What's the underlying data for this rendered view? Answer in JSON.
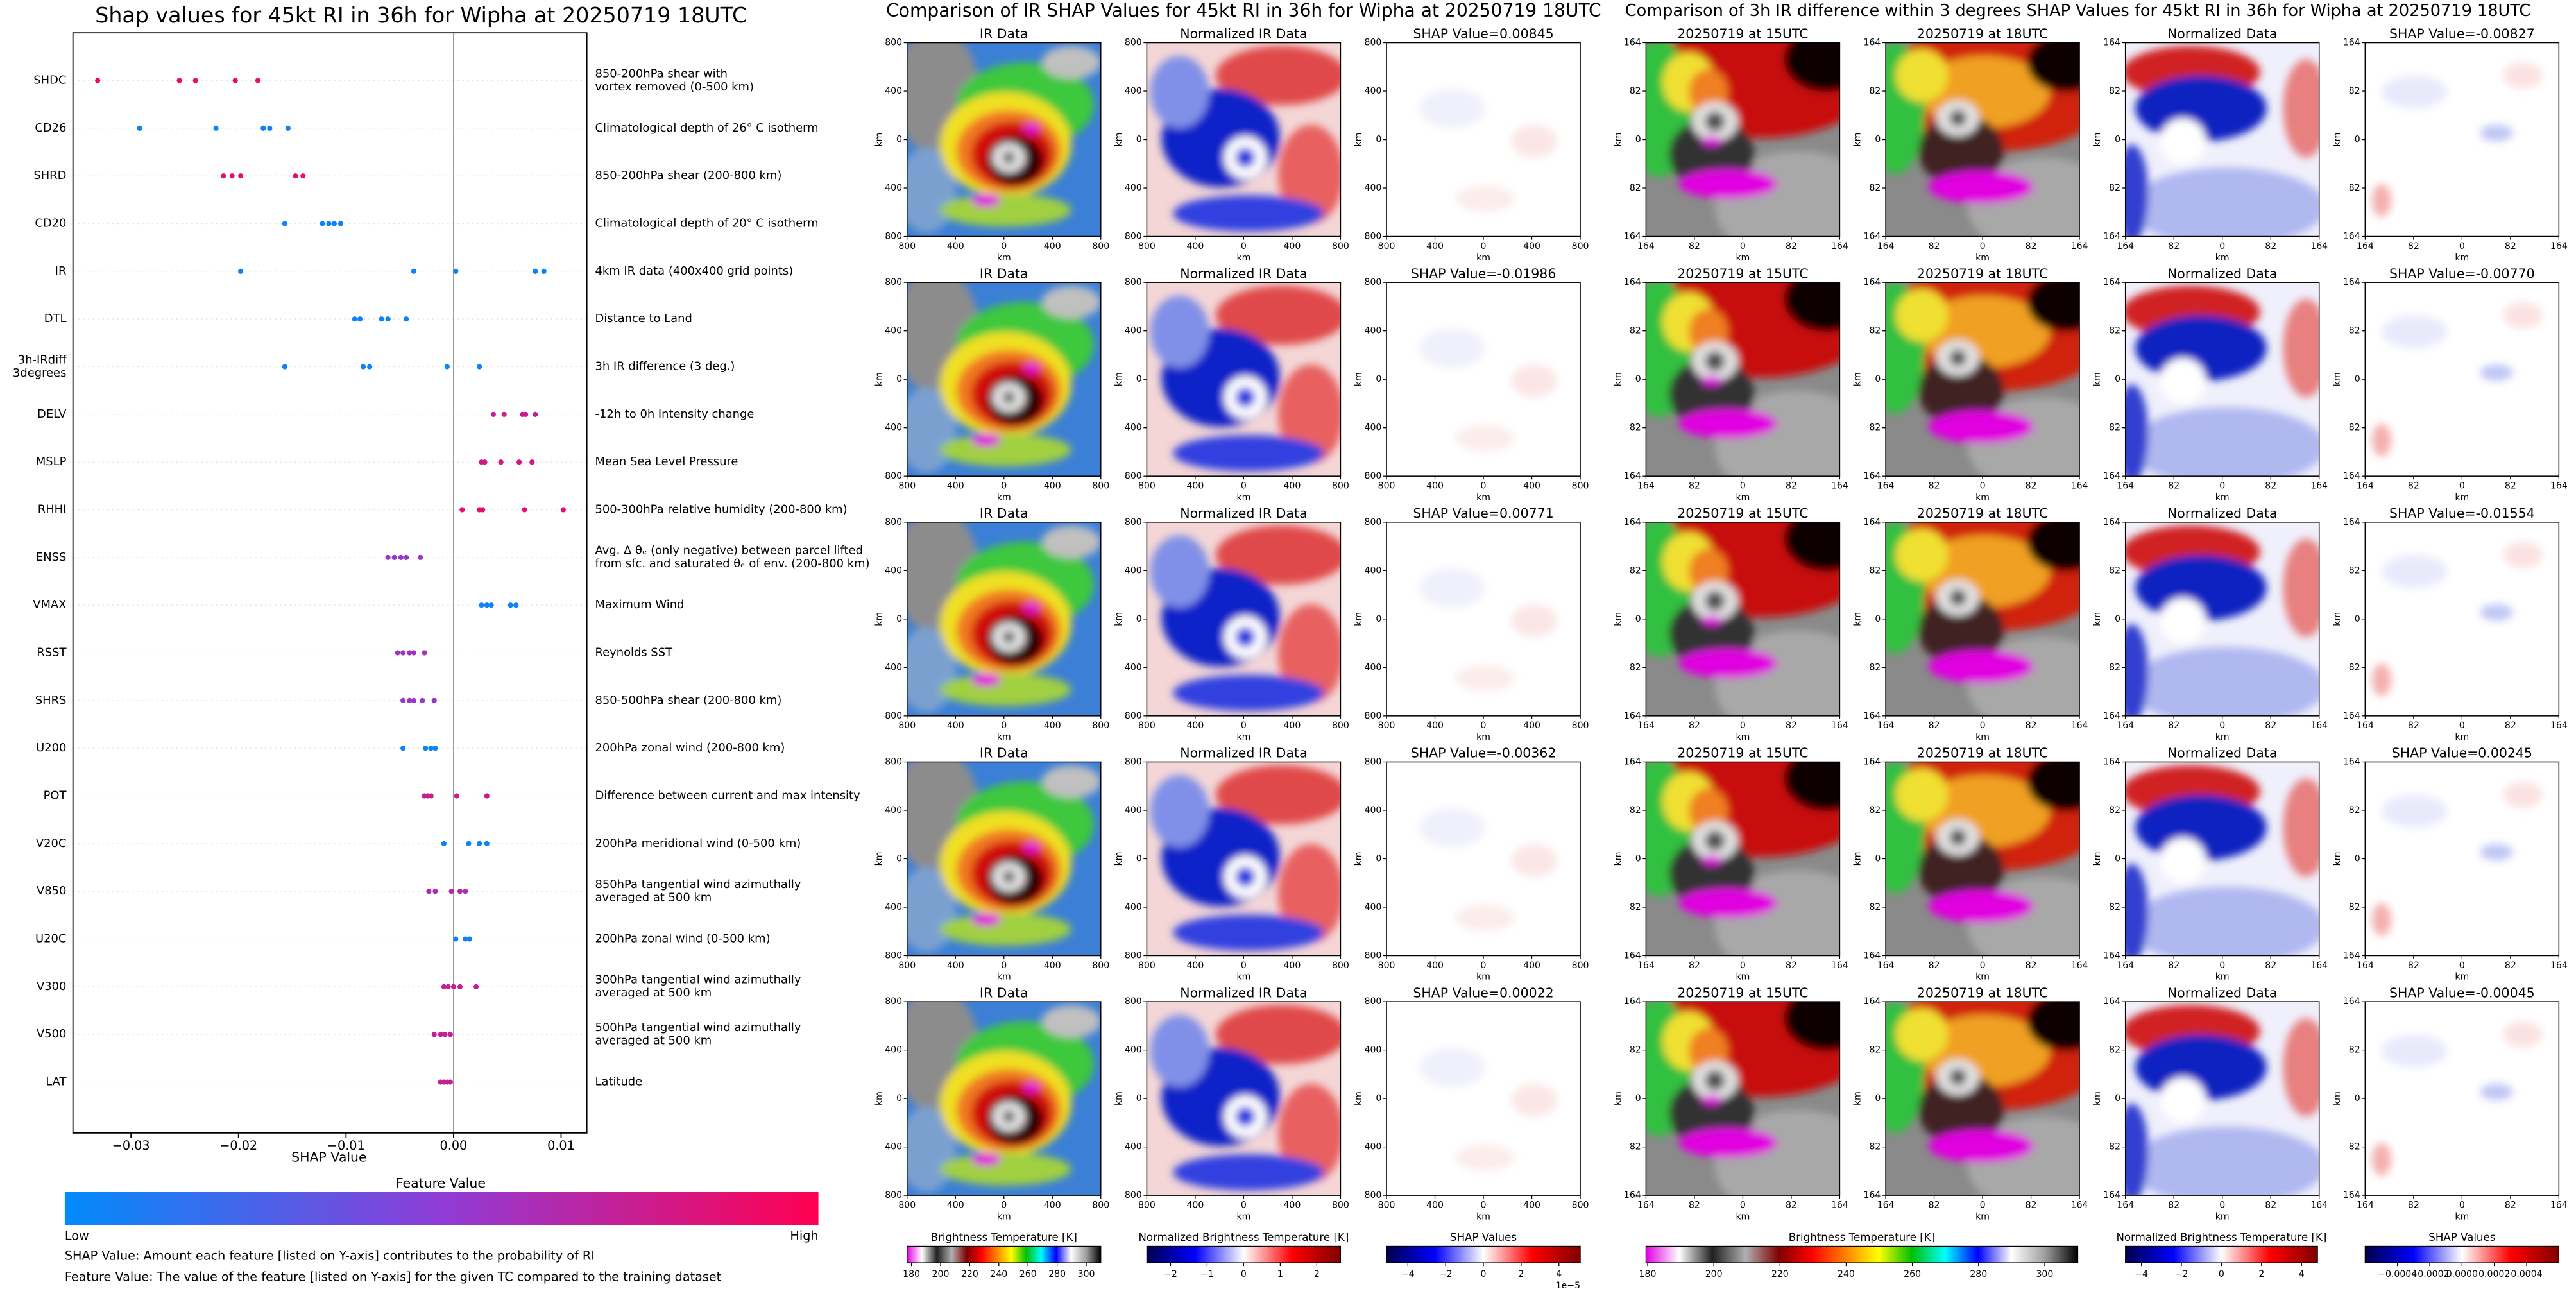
{
  "chart_data": [
    {
      "type": "scatter",
      "title": "Shap values for 45kt RI in 36h for Wipha at 20250719 18UTC",
      "xlabel": "SHAP Value",
      "xlim": [
        -0.0354,
        0.0124
      ],
      "xticks": [
        {
          "value": -0.03,
          "label": "−0.03"
        },
        {
          "value": -0.02,
          "label": "−0.02"
        },
        {
          "value": -0.01,
          "label": "−0.01"
        },
        {
          "value": 0,
          "label": "0.00"
        },
        0.01
      ],
      "categories": [
        [
          "SHDC"
        ],
        [
          "CD26"
        ],
        [
          "SHRD"
        ],
        [
          "CD20"
        ],
        [
          "IR"
        ],
        [
          "DTL"
        ],
        [
          "3h-IRdiff",
          "3degrees"
        ],
        [
          "DELV"
        ],
        [
          "MSLP"
        ],
        [
          "RHHI"
        ],
        [
          "ENSS"
        ],
        [
          "VMAX"
        ],
        [
          "RSST"
        ],
        [
          "SHRS"
        ],
        [
          "U200"
        ],
        [
          "POT"
        ],
        [
          "V20C"
        ],
        [
          "V850"
        ],
        [
          "U20C"
        ],
        [
          "V300"
        ],
        [
          "V500"
        ],
        [
          "LAT"
        ]
      ],
      "descriptions": [
        [
          "850-200hPa shear with",
          "vortex removed (0-500 km)"
        ],
        [
          "Climatological depth of 26° C isotherm"
        ],
        [
          "850-200hPa shear (200-800 km)"
        ],
        [
          "Climatological depth of 20° C isotherm"
        ],
        [
          "4km IR data (400x400 grid points)"
        ],
        [
          "Distance to Land"
        ],
        [
          "3h IR difference (3 deg.)"
        ],
        [
          "-12h to 0h Intensity change"
        ],
        [
          "Mean Sea Level Pressure"
        ],
        [
          "500-300hPa relative humidity (200-800 km)"
        ],
        [
          "Avg. Δ θₑ (only negative) between parcel lifted",
          "from sfc. and saturated θₑ of env. (200-800 km)"
        ],
        [
          "Maximum Wind"
        ],
        [
          "Reynolds SST"
        ],
        [
          "850-500hPa shear (200-800 km)"
        ],
        [
          "200hPa zonal wind (200-800 km)"
        ],
        [
          "Difference between current and max intensity"
        ],
        [
          "200hPa meridional wind (0-500 km)"
        ],
        [
          "850hPa tangential wind azimuthally",
          "averaged at 500 km"
        ],
        [
          "200hPa zonal wind (0-500 km)"
        ],
        [
          "300hPa tangential wind azimuthally",
          "averaged at 500 km"
        ],
        [
          "500hPa tangential wind azimuthally",
          "averaged at 500 km"
        ],
        [
          "Latitude"
        ]
      ],
      "values": [
        [
          -0.0331,
          -0.0255,
          -0.024,
          -0.0203,
          -0.0182
        ],
        [
          -0.0292,
          -0.0221,
          -0.0177,
          -0.0171,
          -0.0154
        ],
        [
          -0.0214,
          -0.0206,
          -0.0198,
          -0.0147,
          -0.014
        ],
        [
          -0.0157,
          -0.0122,
          -0.0116,
          -0.0111,
          -0.0105
        ],
        [
          -0.0198,
          -0.0037,
          0.0002,
          0.0076,
          0.0084
        ],
        [
          -0.0092,
          -0.0087,
          -0.0067,
          -0.0061,
          -0.0044
        ],
        [
          -0.0157,
          -0.0084,
          -0.0078,
          -0.0006,
          0.0024
        ],
        [
          0.0037,
          0.0047,
          0.0064,
          0.0067,
          0.0076
        ],
        [
          0.0026,
          0.0029,
          0.0044,
          0.0061,
          0.0073
        ],
        [
          0.0008,
          0.0024,
          0.0027,
          0.0066,
          0.0102
        ],
        [
          -0.0061,
          -0.0055,
          -0.0049,
          -0.0044,
          -0.0031
        ],
        [
          0.0026,
          0.0031,
          0.0035,
          0.0053,
          0.0058
        ],
        [
          -0.0052,
          -0.0047,
          -0.0041,
          -0.0037,
          -0.0027
        ],
        [
          -0.0047,
          -0.0041,
          -0.0037,
          -0.0029,
          -0.0018
        ],
        [
          -0.0047,
          -0.0026,
          -0.0021,
          -0.0017
        ],
        [
          -0.0027,
          -0.0024,
          -0.0021,
          0.0003,
          0.0031
        ],
        [
          -0.0009,
          0.0014,
          0.0024,
          0.0031
        ],
        [
          -0.0023,
          -0.0017,
          -0.0002,
          0.0006,
          0.0011
        ],
        [
          0.0002,
          0.0011,
          0.0015
        ],
        [
          -0.0009,
          -0.0005,
          0.0,
          0.0006,
          0.0021
        ],
        [
          -0.0018,
          -0.0012,
          -0.0008,
          -0.0003
        ],
        [
          -0.0012,
          -0.0009,
          -0.0006,
          -0.0003
        ]
      ],
      "feature_values": [
        [
          1,
          0.95,
          0.9,
          0.95,
          0.9
        ],
        [
          0.05,
          0.05,
          0.05,
          0.05,
          0.05
        ],
        [
          0.85,
          0.85,
          0.85,
          0.9,
          0.9
        ],
        [
          0.05,
          0.05,
          0.05,
          0.05,
          0.05
        ],
        [
          0.05,
          0.05,
          0.05,
          0.05,
          0.05
        ],
        [
          0.05,
          0.05,
          0.05,
          0.05,
          0.05
        ],
        [
          0.05,
          0.05,
          0.05,
          0.05,
          0.05
        ],
        [
          0.75,
          0.75,
          0.75,
          0.75,
          0.75
        ],
        [
          0.8,
          0.8,
          0.8,
          0.8,
          0.8
        ],
        [
          0.9,
          0.9,
          0.9,
          0.9,
          0.9
        ],
        [
          0.55,
          0.55,
          0.55,
          0.55,
          0.55
        ],
        [
          0.05,
          0.05,
          0.05,
          0.05,
          0.05
        ],
        [
          0.6,
          0.6,
          0.6,
          0.6,
          0.6
        ],
        [
          0.55,
          0.55,
          0.55,
          0.55,
          0.55
        ],
        [
          0.05,
          0.05,
          0.05,
          0.05
        ],
        [
          0.75,
          0.75,
          0.75,
          0.75,
          0.75
        ],
        [
          0.05,
          0.05,
          0.05,
          0.05
        ],
        [
          0.65,
          0.65,
          0.65,
          0.65,
          0.65
        ],
        [
          0.05,
          0.05,
          0.05
        ],
        [
          0.75,
          0.75,
          0.75,
          0.75,
          0.75
        ],
        [
          0.75,
          0.75,
          0.75,
          0.75
        ],
        [
          0.75,
          0.75,
          0.75,
          0.75
        ]
      ],
      "colorbar": {
        "title": "Feature Value",
        "low": "Low",
        "high": "High",
        "colors": [
          "#008bfb",
          "#8f3cd6",
          "#ff0051"
        ]
      },
      "notes": [
        "SHAP Value: Amount each feature [listed on Y-axis] contributes to the probability of RI",
        "Feature Value: The value of the feature [listed on Y-axis] for the given TC compared to the training dataset"
      ]
    }
  ],
  "ir_figure": {
    "title": "Comparison of IR SHAP Values for 45kt RI in 36h for Wipha at 20250719 18UTC",
    "axis_label": "km",
    "lim": [
      -800,
      800
    ],
    "ticks": [
      {
        "value": -800,
        "label": "800"
      },
      {
        "value": -400,
        "label": "400"
      },
      0,
      400,
      800
    ],
    "rows": [
      [
        "IR Data",
        "Normalized IR Data",
        "SHAP Value=0.00845"
      ],
      [
        "IR Data",
        "Normalized IR Data",
        "SHAP Value=-0.01986"
      ],
      [
        "IR Data",
        "Normalized IR Data",
        "SHAP Value=0.00771"
      ],
      [
        "IR Data",
        "Normalized IR Data",
        "SHAP Value=-0.00362"
      ],
      [
        "IR Data",
        "Normalized IR Data",
        "SHAP Value=0.00022"
      ]
    ],
    "colorbars": [
      {
        "label": "Brightness Temperature [K]",
        "lim": [
          177,
          310
        ],
        "ticks": [
          180,
          200,
          220,
          240,
          260,
          280,
          300
        ],
        "colors": [
          "#e000e0",
          "#ffffff",
          "#202020",
          "#b0b0b0",
          "#800000",
          "#ff0000",
          "#ff8000",
          "#ffff00",
          "#00c000",
          "#00ffff",
          "#0000ff",
          "#ffffff",
          "#a0a0a0",
          "#000000"
        ]
      },
      {
        "label": "Normalized Brightness Temperature [K]",
        "lim": [
          -2.65,
          2.65
        ],
        "ticks": [
          {
            "value": -2,
            "label": "−2"
          },
          {
            "value": -1,
            "label": "−1"
          },
          0,
          1,
          2
        ],
        "colors": [
          "#00004c",
          "#0000ff",
          "#ffffff",
          "#ff0000",
          "#800000"
        ]
      },
      {
        "label": "SHAP Values",
        "lim": [
          -5.13e-05,
          5.13e-05
        ],
        "ticks": [
          {
            "value": -4e-05,
            "label": "−4"
          },
          {
            "value": -2e-05,
            "label": "−2"
          },
          0,
          {
            "value": 2e-05,
            "label": "2"
          },
          {
            "value": 4e-05,
            "label": "4"
          }
        ],
        "offset": "1e−5",
        "colors": [
          "#00004c",
          "#0000ff",
          "#ffffff",
          "#ff0000",
          "#800000"
        ]
      }
    ]
  },
  "diff_figure": {
    "title": "Comparison of 3h IR difference within 3 degrees SHAP Values for 45kt RI in 36h for Wipha at 20250719 18UTC",
    "axis_label": "km",
    "lim": [
      -164,
      164
    ],
    "ticks": [
      {
        "value": -164,
        "label": "164"
      },
      {
        "value": -82,
        "label": "82"
      },
      0,
      82,
      164
    ],
    "rows": [
      [
        "20250719 at 15UTC",
        "20250719 at 18UTC",
        "Normalized Data",
        "SHAP Value=-0.00827"
      ],
      [
        "20250719 at 15UTC",
        "20250719 at 18UTC",
        "Normalized Data",
        "SHAP Value=-0.00770"
      ],
      [
        "20250719 at 15UTC",
        "20250719 at 18UTC",
        "Normalized Data",
        "SHAP Value=-0.01554"
      ],
      [
        "20250719 at 15UTC",
        "20250719 at 18UTC",
        "Normalized Data",
        "SHAP Value=0.00245"
      ],
      [
        "20250719 at 15UTC",
        "20250719 at 18UTC",
        "Normalized Data",
        "SHAP Value=-0.00045"
      ]
    ],
    "colorbars": [
      {
        "label": "Brightness Temperature [K]",
        "lim": [
          179.5,
          310
        ],
        "ticks": [
          180,
          200,
          220,
          240,
          260,
          280,
          300
        ],
        "colors": [
          "#e000e0",
          "#ffffff",
          "#202020",
          "#b0b0b0",
          "#800000",
          "#ff0000",
          "#ff8000",
          "#ffff00",
          "#00c000",
          "#00ffff",
          "#0000ff",
          "#ffffff",
          "#a0a0a0",
          "#000000"
        ]
      },
      {
        "label": "Normalized Brightness Temperature [K]",
        "lim": [
          -4.8,
          4.8
        ],
        "ticks": [
          {
            "value": -4,
            "label": "−4"
          },
          {
            "value": -2,
            "label": "−2"
          },
          0,
          2,
          4
        ],
        "colors": [
          "#00004c",
          "#0000ff",
          "#ffffff",
          "#ff0000",
          "#800000"
        ]
      },
      {
        "label": "SHAP Values",
        "lim": [
          -0.0006,
          0.0006
        ],
        "ticks": [
          {
            "value": -0.0004,
            "label": "−0.0004"
          },
          {
            "value": -0.0002,
            "label": "−0.0002"
          },
          {
            "value": 0,
            "label": "0.0000"
          },
          {
            "value": 0.0002,
            "label": "0.0002"
          },
          {
            "value": 0.0004,
            "label": "0.0004"
          }
        ],
        "colors": [
          "#00004c",
          "#0000ff",
          "#ffffff",
          "#ff0000",
          "#800000"
        ]
      }
    ]
  }
}
